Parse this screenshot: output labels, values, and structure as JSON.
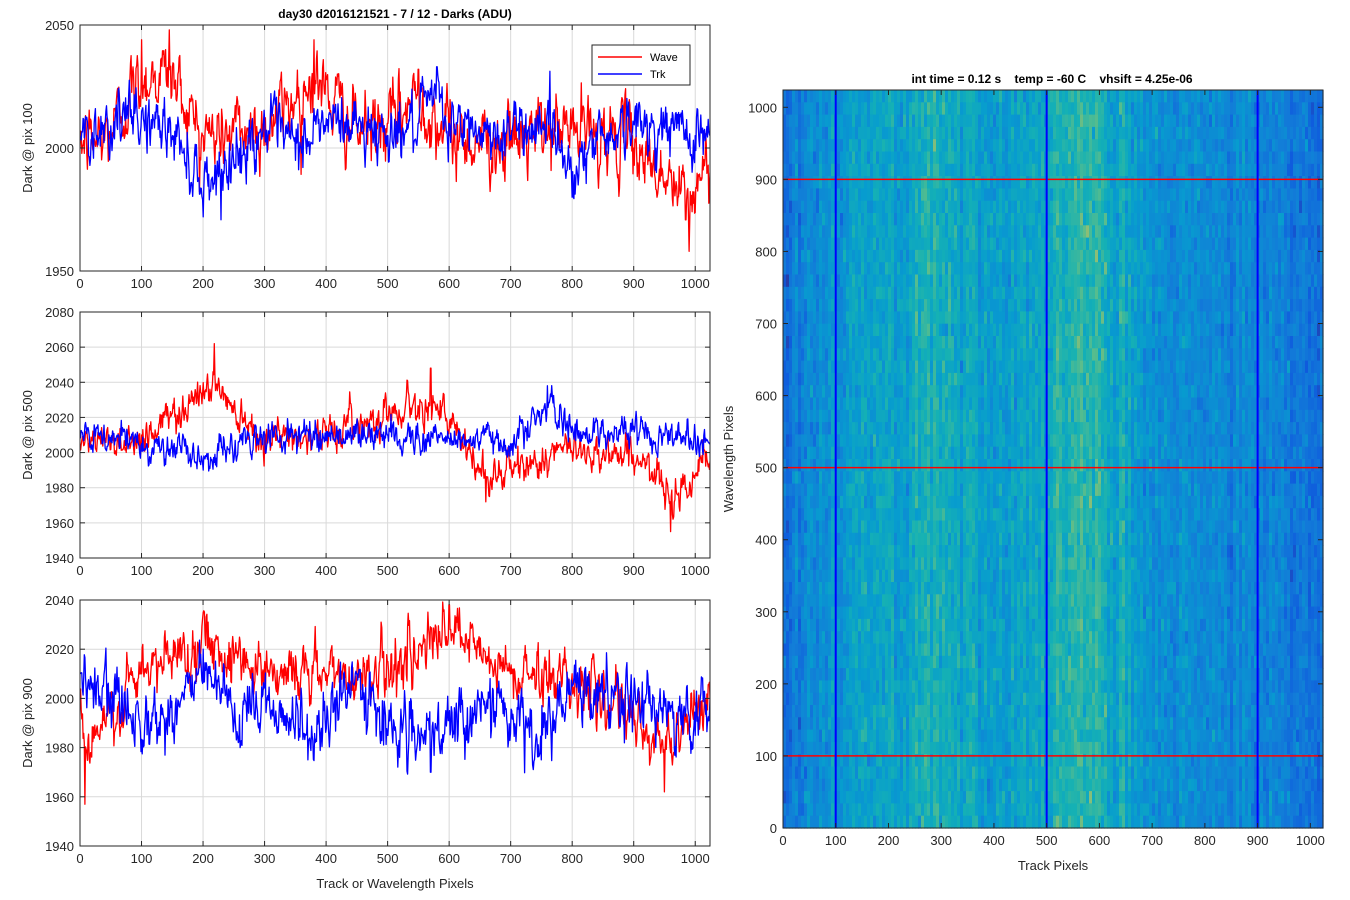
{
  "figure_title": "day30 d2016121521 - 7 / 12 - Darks (ADU)",
  "colors": {
    "wave": "#ff0000",
    "trk": "#0000ff",
    "grid": "#d9d9d9",
    "axis": "#262626"
  },
  "chart_data": [
    {
      "type": "line",
      "title": "day30 d2016121521 - 7 / 12 - Darks (ADU)",
      "xlabel": "",
      "ylabel": "Dark @ pix 100",
      "xlim": [
        0,
        1024
      ],
      "ylim": [
        1950,
        2050
      ],
      "xticks": [
        0,
        100,
        200,
        300,
        400,
        500,
        600,
        700,
        800,
        900,
        1000
      ],
      "yticks": [
        1950,
        2000,
        2050
      ],
      "grid": true,
      "legend": {
        "location": "top-right",
        "entries": [
          "Wave",
          "Trk"
        ]
      },
      "series": [
        {
          "name": "Wave",
          "color": "#ff0000",
          "n_points": 1024,
          "summary": {
            "mean": 2005,
            "std": 11,
            "max": 2048,
            "min": 1958
          },
          "x": [
            0,
            40,
            100,
            145,
            200,
            300,
            380,
            450,
            500,
            550,
            600,
            700,
            800,
            900,
            990,
            1024
          ],
          "y": [
            2000,
            2003,
            2044,
            2048,
            2005,
            2010,
            2044,
            2009,
            2010,
            2032,
            2005,
            2000,
            2010,
            2000,
            1958,
            1990
          ]
        },
        {
          "name": "Trk",
          "color": "#0000ff",
          "n_points": 1024,
          "summary": {
            "mean": 2008,
            "std": 9,
            "max": 2036,
            "min": 1970
          },
          "x": [
            0,
            40,
            100,
            150,
            200,
            260,
            300,
            350,
            400,
            450,
            500,
            550,
            580,
            600,
            650,
            700,
            760,
            800,
            850,
            900,
            950,
            1000,
            1024
          ],
          "y": [
            2005,
            2010,
            2015,
            2005,
            1972,
            1990,
            2010,
            1995,
            2012,
            2010,
            2005,
            2010,
            2033,
            2010,
            2005,
            2005,
            2015,
            1980,
            2005,
            2010,
            2008,
            2005,
            2005
          ]
        }
      ]
    },
    {
      "type": "line",
      "title": "",
      "xlabel": "",
      "ylabel": "Dark @ pix 500",
      "xlim": [
        0,
        1024
      ],
      "ylim": [
        1940,
        2080
      ],
      "xticks": [
        0,
        100,
        200,
        300,
        400,
        500,
        600,
        700,
        800,
        900,
        1000
      ],
      "yticks": [
        1940,
        1960,
        1980,
        2000,
        2020,
        2040,
        2060,
        2080
      ],
      "grid": true,
      "series": [
        {
          "name": "Wave",
          "color": "#ff0000",
          "n_points": 1024,
          "summary": {
            "mean": 2005,
            "std": 8,
            "max": 2062,
            "min": 1955
          },
          "x": [
            0,
            100,
            218,
            300,
            400,
            570,
            660,
            800,
            900,
            960,
            1024
          ],
          "y": [
            2005,
            2010,
            2062,
            2010,
            2015,
            2048,
            1972,
            2000,
            1995,
            1955,
            1995
          ]
        },
        {
          "name": "Trk",
          "color": "#0000ff",
          "n_points": 1024,
          "summary": {
            "mean": 2008,
            "std": 7,
            "max": 2047,
            "min": 1985
          },
          "x": [
            0,
            100,
            200,
            300,
            400,
            500,
            600,
            700,
            760,
            800,
            900,
            1000,
            1024
          ],
          "y": [
            2008,
            2005,
            1990,
            2010,
            2012,
            2010,
            2008,
            2005,
            2038,
            2015,
            2015,
            2010,
            2005
          ]
        }
      ]
    },
    {
      "type": "line",
      "title": "",
      "xlabel": "Track or Wavelength Pixels",
      "ylabel": "Dark @ pix 900",
      "xlim": [
        0,
        1024
      ],
      "ylim": [
        1940,
        2040
      ],
      "xticks": [
        0,
        100,
        200,
        300,
        400,
        500,
        600,
        700,
        800,
        900,
        1000
      ],
      "yticks": [
        1940,
        1960,
        1980,
        2000,
        2020,
        2040
      ],
      "grid": true,
      "series": [
        {
          "name": "Wave",
          "color": "#ff0000",
          "n_points": 1024,
          "summary": {
            "mean": 2008,
            "std": 9,
            "max": 2038,
            "min": 1957
          },
          "x": [
            0,
            8,
            100,
            200,
            300,
            400,
            500,
            600,
            700,
            800,
            950,
            1024
          ],
          "y": [
            2000,
            1957,
            2010,
            2035,
            2015,
            2010,
            2015,
            2038,
            2010,
            2010,
            1962,
            2000
          ]
        },
        {
          "name": "Trk",
          "color": "#0000ff",
          "n_points": 1024,
          "summary": {
            "mean": 1998,
            "std": 10,
            "max": 2025,
            "min": 1968
          },
          "x": [
            0,
            50,
            130,
            200,
            260,
            300,
            370,
            450,
            500,
            570,
            650,
            750,
            800,
            900,
            1000,
            1024
          ],
          "y": [
            2010,
            2000,
            1985,
            2020,
            1980,
            2005,
            1975,
            2010,
            1985,
            1970,
            2000,
            1975,
            2005,
            2000,
            1985,
            2000
          ]
        }
      ]
    },
    {
      "type": "heatmap",
      "title": "int time = 0.12 s    temp = -60 C    vhsift = 4.25e-06",
      "xlabel": "Track Pixels",
      "ylabel": "Wavelength Pixels",
      "xlim": [
        0,
        1024
      ],
      "ylim": [
        0,
        1024
      ],
      "xticks": [
        0,
        100,
        200,
        300,
        400,
        500,
        600,
        700,
        800,
        900,
        1000
      ],
      "yticks": [
        0,
        100,
        200,
        300,
        400,
        500,
        600,
        700,
        800,
        900,
        1000
      ],
      "colormap": "parula",
      "column_profile": {
        "x": [
          0,
          60,
          150,
          200,
          280,
          400,
          500,
          560,
          620,
          700,
          800,
          900,
          1000,
          1024
        ],
        "level": [
          0.3,
          0.45,
          0.52,
          0.55,
          0.62,
          0.5,
          0.55,
          0.68,
          0.58,
          0.45,
          0.42,
          0.4,
          0.3,
          0.28
        ]
      },
      "marker_lines": {
        "vertical": {
          "color": "#0000ff",
          "x": [
            100,
            500,
            900
          ]
        },
        "horizontal": {
          "color": "#ff0000",
          "y": [
            100,
            500,
            900
          ]
        }
      }
    }
  ]
}
